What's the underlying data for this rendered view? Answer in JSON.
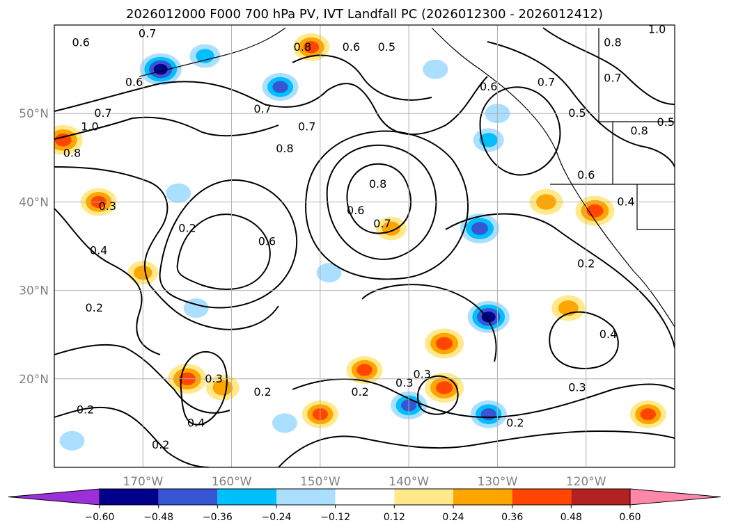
{
  "chart_data": {
    "type": "heatmap",
    "title": "2026012000 F000 700 hPa PV, IVT Landfall PC (2026012300 - 2026012412)",
    "projection": "lat-lon map, North Pacific",
    "lon_range": [
      -180,
      -110
    ],
    "lat_range": [
      10,
      60
    ],
    "lon_ticks": [
      {
        "value": -170,
        "label": "170°W"
      },
      {
        "value": -160,
        "label": "160°W"
      },
      {
        "value": -150,
        "label": "150°W"
      },
      {
        "value": -140,
        "label": "140°W"
      },
      {
        "value": -130,
        "label": "130°W"
      },
      {
        "value": -120,
        "label": "120°W"
      }
    ],
    "lat_ticks": [
      {
        "value": 20,
        "label": "20°N"
      },
      {
        "value": 30,
        "label": "30°N"
      },
      {
        "value": 40,
        "label": "40°N"
      },
      {
        "value": 50,
        "label": "50°N"
      }
    ],
    "grid": true,
    "colorbar": {
      "orientation": "horizontal",
      "extend": "both",
      "levels": [
        -0.6,
        -0.48,
        -0.36,
        -0.24,
        -0.12,
        0.12,
        0.24,
        0.36,
        0.48,
        0.6
      ],
      "colors": [
        "#9b30d9",
        "#00008b",
        "#3656d4",
        "#00bfff",
        "#aadfff",
        "#ffffff",
        "#ffe98a",
        "#ffa500",
        "#ff4500",
        "#b22222",
        "#ff88aa"
      ],
      "tick_labels": [
        "−0.60",
        "−0.48",
        "−0.36",
        "−0.24",
        "−0.12",
        "0.12",
        "0.24",
        "0.36",
        "0.48",
        "0.60"
      ]
    },
    "filled_field": "IVT Landfall PC",
    "shaded_blobs": [
      {
        "lon": -168,
        "lat": 55,
        "value": -0.5
      },
      {
        "lon": -163,
        "lat": 56.5,
        "value": -0.3
      },
      {
        "lon": -154.5,
        "lat": 53,
        "value": -0.4
      },
      {
        "lon": -137,
        "lat": 55,
        "value": -0.2
      },
      {
        "lon": -131,
        "lat": 47,
        "value": -0.3
      },
      {
        "lon": -130,
        "lat": 50,
        "value": -0.2
      },
      {
        "lon": -132,
        "lat": 37,
        "value": -0.45
      },
      {
        "lon": -131,
        "lat": 27,
        "value": -0.5
      },
      {
        "lon": -131,
        "lat": 16,
        "value": -0.4
      },
      {
        "lon": -140,
        "lat": 17,
        "value": -0.4
      },
      {
        "lon": -164,
        "lat": 28,
        "value": -0.2
      },
      {
        "lon": -166,
        "lat": 41,
        "value": -0.2
      },
      {
        "lon": -178,
        "lat": 13,
        "value": -0.2
      },
      {
        "lon": -149,
        "lat": 32,
        "value": -0.2
      },
      {
        "lon": -154,
        "lat": 15,
        "value": -0.2
      },
      {
        "lon": -175,
        "lat": 40,
        "value": 0.4
      },
      {
        "lon": -179,
        "lat": 47,
        "value": 0.45
      },
      {
        "lon": -165,
        "lat": 20,
        "value": 0.45
      },
      {
        "lon": -161,
        "lat": 19,
        "value": 0.35
      },
      {
        "lon": -145,
        "lat": 21,
        "value": 0.4
      },
      {
        "lon": -136,
        "lat": 24,
        "value": 0.45
      },
      {
        "lon": -136,
        "lat": 19,
        "value": 0.45
      },
      {
        "lon": -150,
        "lat": 16,
        "value": 0.4
      },
      {
        "lon": -122,
        "lat": 28,
        "value": 0.35
      },
      {
        "lon": -119,
        "lat": 39,
        "value": 0.45
      },
      {
        "lon": -124.5,
        "lat": 40,
        "value": 0.35
      },
      {
        "lon": -151,
        "lat": 57.5,
        "value": 0.4
      },
      {
        "lon": -113,
        "lat": 16,
        "value": 0.4
      },
      {
        "lon": -142,
        "lat": 37,
        "value": 0.3
      },
      {
        "lon": -170,
        "lat": 32,
        "value": 0.3
      }
    ],
    "contour_field": "700 hPa PV",
    "contour_labels": [
      {
        "lon": -177,
        "lat": 58,
        "text": "0.6"
      },
      {
        "lon": -169.5,
        "lat": 59,
        "text": "0.7"
      },
      {
        "lon": -171,
        "lat": 53.5,
        "text": "0.6"
      },
      {
        "lon": -174.5,
        "lat": 50,
        "text": "0.7"
      },
      {
        "lon": -176,
        "lat": 48.5,
        "text": "1.0"
      },
      {
        "lon": -178,
        "lat": 45.5,
        "text": "0.8"
      },
      {
        "lon": -156.5,
        "lat": 50.5,
        "text": "0.7"
      },
      {
        "lon": -151.5,
        "lat": 48.5,
        "text": "0.7"
      },
      {
        "lon": -154,
        "lat": 46,
        "text": "0.8"
      },
      {
        "lon": -146.5,
        "lat": 57.5,
        "text": "0.6"
      },
      {
        "lon": -142.5,
        "lat": 57.5,
        "text": "0.5"
      },
      {
        "lon": -152,
        "lat": 57.5,
        "text": "0.8"
      },
      {
        "lon": -174,
        "lat": 39.5,
        "text": "0.3"
      },
      {
        "lon": -165,
        "lat": 37,
        "text": "0.2"
      },
      {
        "lon": -156,
        "lat": 35.5,
        "text": "0.6"
      },
      {
        "lon": -175,
        "lat": 34.5,
        "text": "0.4"
      },
      {
        "lon": -175.5,
        "lat": 28,
        "text": "0.2"
      },
      {
        "lon": -143.5,
        "lat": 42,
        "text": "0.8"
      },
      {
        "lon": -146,
        "lat": 39,
        "text": "0.6"
      },
      {
        "lon": -143,
        "lat": 37.5,
        "text": "0.7"
      },
      {
        "lon": -131,
        "lat": 53,
        "text": "0.6"
      },
      {
        "lon": -124.5,
        "lat": 53.5,
        "text": "0.7"
      },
      {
        "lon": -117,
        "lat": 58,
        "text": "0.8"
      },
      {
        "lon": -117,
        "lat": 54,
        "text": "0.7"
      },
      {
        "lon": -121,
        "lat": 50,
        "text": "0.5"
      },
      {
        "lon": -114,
        "lat": 48,
        "text": "0.8"
      },
      {
        "lon": -111,
        "lat": 49,
        "text": "0.5"
      },
      {
        "lon": -120,
        "lat": 43,
        "text": "0.6"
      },
      {
        "lon": -115.5,
        "lat": 40,
        "text": "0.4"
      },
      {
        "lon": -112,
        "lat": 59.5,
        "text": "1.0"
      },
      {
        "lon": -120,
        "lat": 33,
        "text": "0.2"
      },
      {
        "lon": -117.5,
        "lat": 25,
        "text": "0.4"
      },
      {
        "lon": -121,
        "lat": 19,
        "text": "0.3"
      },
      {
        "lon": -128,
        "lat": 15,
        "text": "0.2"
      },
      {
        "lon": -140.5,
        "lat": 19.5,
        "text": "0.3"
      },
      {
        "lon": -138.5,
        "lat": 20.5,
        "text": "0.3"
      },
      {
        "lon": -145.5,
        "lat": 18.5,
        "text": "0.2"
      },
      {
        "lon": -156.5,
        "lat": 18.5,
        "text": "0.2"
      },
      {
        "lon": -162,
        "lat": 20,
        "text": "0.3"
      },
      {
        "lon": -164,
        "lat": 15,
        "text": "0.4"
      },
      {
        "lon": -176.5,
        "lat": 16.5,
        "text": "0.2"
      },
      {
        "lon": -168,
        "lat": 12.5,
        "text": "0.2"
      }
    ]
  }
}
